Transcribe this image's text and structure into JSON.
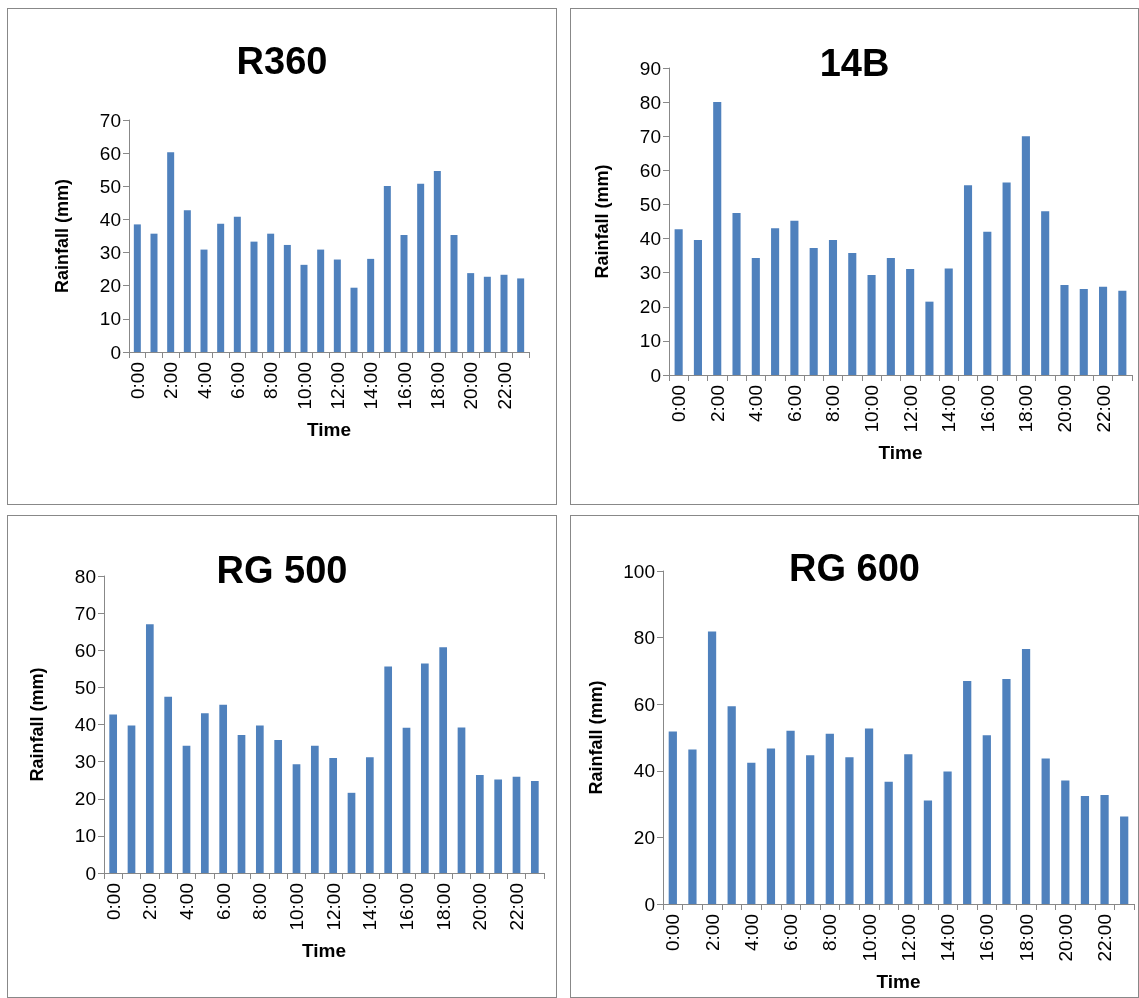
{
  "chart_data": [
    {
      "type": "bar",
      "title": "R360",
      "xlabel": "Time",
      "ylabel": "Rainfall (mm)",
      "categories": [
        "0:00",
        null,
        "2:00",
        null,
        "4:00",
        null,
        "6:00",
        null,
        "8:00",
        null,
        "10:00",
        null,
        "12:00",
        null,
        "14:00",
        null,
        "16:00",
        null,
        "18:00",
        null,
        "20:00",
        null,
        "22:00",
        null
      ],
      "values": [
        38.5,
        35.7,
        60.3,
        42.8,
        30.9,
        38.7,
        40.8,
        33.3,
        35.7,
        32.3,
        26.3,
        30.9,
        27.9,
        19.4,
        28.1,
        50.1,
        35.3,
        50.8,
        54.6,
        35.3,
        23.8,
        22.7,
        23.3,
        22.2
      ],
      "color": "#4f81bd",
      "ylim": [
        0,
        70
      ],
      "yticks": [
        0,
        10,
        20,
        30,
        40,
        50,
        60,
        70
      ]
    },
    {
      "type": "bar",
      "title": "14B",
      "xlabel": "Time",
      "ylabel": "Rainfall (mm)",
      "categories": [
        "0:00",
        null,
        "2:00",
        null,
        "4:00",
        null,
        "6:00",
        null,
        "8:00",
        null,
        "10:00",
        null,
        "12:00",
        null,
        "14:00",
        null,
        "16:00",
        null,
        "18:00",
        null,
        "20:00",
        null,
        "22:00",
        null
      ],
      "values": [
        42.7,
        39.6,
        80,
        47.5,
        34.3,
        43,
        45.2,
        37.2,
        39.6,
        35.8,
        29.3,
        34.3,
        31.1,
        21.5,
        31.2,
        55.6,
        42,
        56.4,
        70,
        48,
        26.4,
        25.2,
        25.9,
        24.7
      ],
      "color": "#4f81bd",
      "ylim": [
        0,
        90
      ],
      "yticks": [
        0,
        10,
        20,
        30,
        40,
        50,
        60,
        70,
        80,
        90
      ]
    },
    {
      "type": "bar",
      "title": "RG 500",
      "xlabel": "Time",
      "ylabel": "Rainfall (mm)",
      "categories": [
        "0:00",
        null,
        "2:00",
        null,
        "4:00",
        null,
        "6:00",
        null,
        "8:00",
        null,
        "10:00",
        null,
        "12:00",
        null,
        "14:00",
        null,
        "16:00",
        null,
        "18:00",
        null,
        "20:00",
        null,
        "22:00",
        null
      ],
      "values": [
        42.7,
        39.7,
        67,
        47.5,
        34.3,
        43,
        45.3,
        37.2,
        39.7,
        35.8,
        29.3,
        34.3,
        31,
        21.6,
        31.2,
        55.6,
        39.1,
        56.4,
        60.8,
        39.2,
        26.4,
        25.2,
        25.9,
        24.8
      ],
      "color": "#4f81bd",
      "ylim": [
        0,
        80
      ],
      "yticks": [
        0,
        10,
        20,
        30,
        40,
        50,
        60,
        70,
        80
      ]
    },
    {
      "type": "bar",
      "title": "RG 600",
      "xlabel": "Time",
      "ylabel": "Rainfall (mm)",
      "categories": [
        "0:00",
        null,
        "2:00",
        null,
        "4:00",
        null,
        "6:00",
        null,
        "8:00",
        null,
        "10:00",
        null,
        "12:00",
        null,
        "14:00",
        null,
        "16:00",
        null,
        "18:00",
        null,
        "20:00",
        null,
        "22:00",
        null
      ],
      "values": [
        51.8,
        46.4,
        81.8,
        59.4,
        42.4,
        46.7,
        52,
        44.7,
        51.1,
        44.1,
        52.7,
        36.7,
        45,
        31.1,
        39.8,
        67,
        50.7,
        67.6,
        76.6,
        43.7,
        37.1,
        32.4,
        32.7,
        26.3
      ],
      "color": "#4f81bd",
      "ylim": [
        0,
        100
      ],
      "yticks": [
        0,
        20,
        40,
        60,
        80,
        100
      ]
    }
  ]
}
